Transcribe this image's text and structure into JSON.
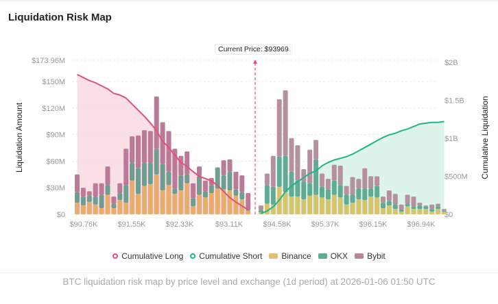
{
  "title": "Liquidation Risk Map",
  "current_price_label": "Current Price: $93969",
  "legend": [
    {
      "label": "Cumulative Long",
      "kind": "ring",
      "color": "#e0517a"
    },
    {
      "label": "Cumulative Short",
      "kind": "ring",
      "color": "#22b38a"
    },
    {
      "label": "Binance",
      "kind": "swatch",
      "color": "#e2c375"
    },
    {
      "label": "OKX",
      "kind": "swatch",
      "color": "#5fab93"
    },
    {
      "label": "Bybit",
      "kind": "swatch",
      "color": "#b8869b"
    }
  ],
  "footer": "BTC liquidation risk map by price level and exchange (1d period) at 2026-01-06 01:50 UTC",
  "chart_data": {
    "type": "bar",
    "stacked": true,
    "title": "Liquidation Risk Map",
    "ylabel": "Liquidation Amount",
    "y2label": "Cumulative Liquidation",
    "ylim": [
      0,
      173.96
    ],
    "y_unit": "$M",
    "y_ticks": [
      "$0",
      "$30M",
      "$60M",
      "$90M",
      "$120M",
      "$150M",
      "$173.96M"
    ],
    "y_tick_values": [
      0,
      30,
      60,
      90,
      120,
      150,
      173.96
    ],
    "y2lim": [
      0,
      2000
    ],
    "y2_unit": "$M",
    "y2_ticks": [
      "$0",
      "$500M",
      "$1B",
      "$1.5B",
      "$2B"
    ],
    "y2_tick_values": [
      0,
      500,
      1000,
      1500,
      2000
    ],
    "x_ticks": [
      "$90.76K",
      "$91.55K",
      "$92.33K",
      "$93.11K",
      "$94.58K",
      "$95.37K",
      "$96.15K",
      "$96.94K"
    ],
    "current_price": 93969,
    "long_side": {
      "binance": [
        13,
        10,
        14,
        11,
        7,
        22,
        7,
        16,
        13,
        38,
        23,
        32,
        34,
        45,
        27,
        33,
        23,
        27,
        35,
        9,
        22,
        19,
        24,
        29,
        28,
        27,
        21,
        17,
        4
      ],
      "okx": [
        12,
        10,
        7,
        9,
        15,
        11,
        5,
        8,
        20,
        20,
        29,
        26,
        24,
        29,
        30,
        15,
        6,
        17,
        10,
        9,
        21,
        7,
        9,
        24,
        16,
        21,
        7,
        8,
        1
      ],
      "bybit": [
        20,
        10,
        5,
        15,
        13,
        21,
        8,
        11,
        41,
        30,
        37,
        37,
        36,
        59,
        47,
        46,
        45,
        22,
        26,
        17,
        11,
        12,
        8,
        0,
        17,
        14,
        20,
        19,
        19
      ],
      "cumulative_long": [
        1840,
        1800,
        1760,
        1730,
        1690,
        1650,
        1590,
        1570,
        1530,
        1450,
        1370,
        1290,
        1200,
        1100,
        960,
        880,
        780,
        680,
        630,
        560,
        500,
        470,
        440,
        380,
        300,
        220,
        160,
        110,
        60
      ]
    }
  }
}
